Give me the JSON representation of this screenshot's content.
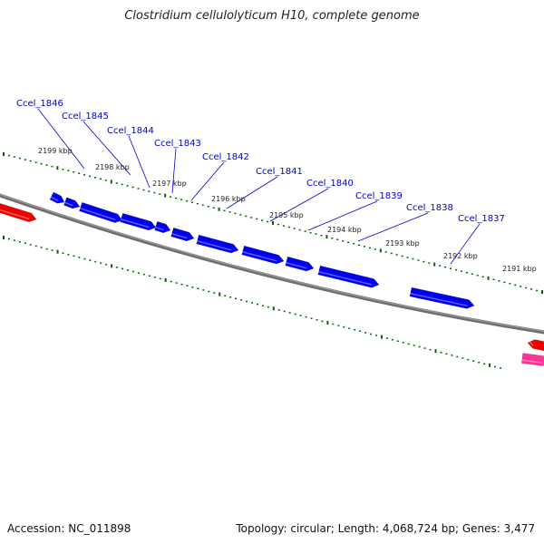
{
  "title": "Clostridium cellulolyticum H10, complete genome",
  "footer": {
    "accession": "Accession: NC_011898",
    "summary": "Topology: circular; Length: 4,068,724 bp; Genes: 3,477"
  },
  "colors": {
    "forward_gene": "#0000ee",
    "reverse_gene": "#ee0000",
    "rna_gene": "#ff3399",
    "backbone": "#808080",
    "tick": "#006600",
    "label": "#0000cc"
  },
  "scale_labels": [
    "2199 kbp",
    "2198 kbp",
    "2197 kbp",
    "2196 kbp",
    "2195 kbp",
    "2194 kbp",
    "2193 kbp",
    "2192 kbp",
    "2191 kbp"
  ],
  "gene_labels": [
    "Ccel_1846",
    "Ccel_1845",
    "Ccel_1844",
    "Ccel_1843",
    "Ccel_1842",
    "Ccel_1841",
    "Ccel_1840",
    "Ccel_1839",
    "Ccel_1838",
    "Ccel_1837"
  ]
}
